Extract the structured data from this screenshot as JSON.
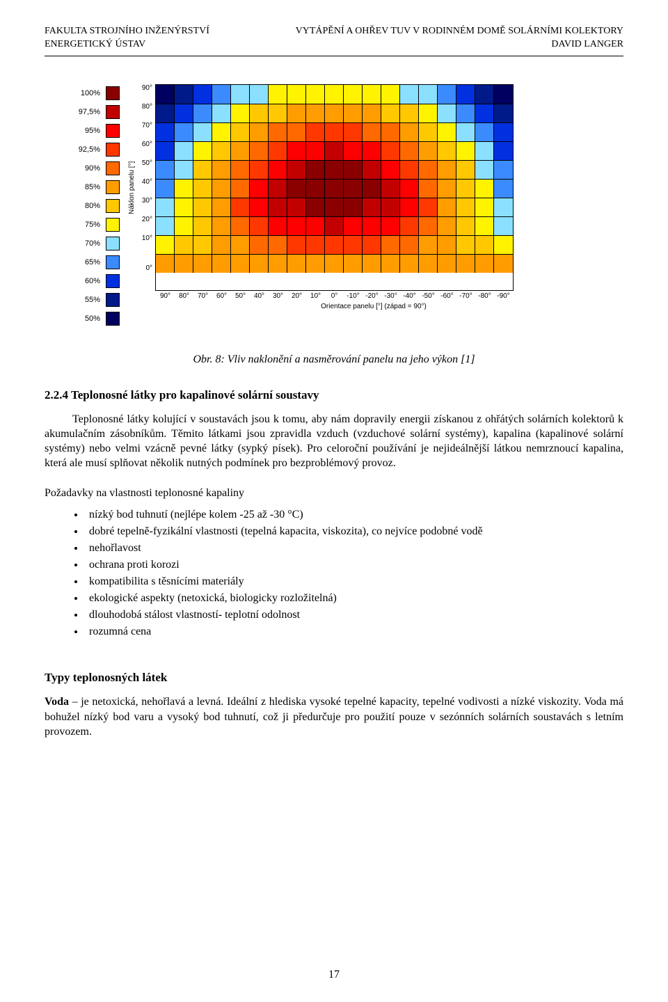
{
  "header": {
    "left1": "FAKULTA STROJNÍHO INŽENÝRSTVÍ",
    "left2": "ENERGETICKÝ ÚSTAV",
    "right1": "VYTÁPĚNÍ A OHŘEV TUV V RODINNÉM DOMĚ SOLÁRNÍMI KOLEKTORY",
    "right2": "DAVID LANGER"
  },
  "figure": {
    "type": "heatmap",
    "caption": "Obr. 8: Vliv naklonění a nasměrování panelu na jeho výkon [1]",
    "x_title": "Orientace panelu [°] (západ = 90°)",
    "y_title": "Náklon panelu [°]",
    "x_ticks": [
      "90°",
      "80°",
      "70°",
      "60°",
      "50°",
      "40°",
      "30°",
      "20°",
      "10°",
      "0°",
      "-10°",
      "-20°",
      "-30°",
      "-40°",
      "-50°",
      "-60°",
      "-70°",
      "-80°",
      "-90°"
    ],
    "y_ticks": [
      "90°",
      "80°",
      "70°",
      "60°",
      "50°",
      "40°",
      "30°",
      "20°",
      "10°",
      "0°"
    ],
    "legend": [
      {
        "label": "100%",
        "color": "#8a0000"
      },
      {
        "label": "97,5%",
        "color": "#c30000"
      },
      {
        "label": "95%",
        "color": "#ff0000"
      },
      {
        "label": "92,5%",
        "color": "#ff3800"
      },
      {
        "label": "90%",
        "color": "#ff6900"
      },
      {
        "label": "85%",
        "color": "#ff9d00"
      },
      {
        "label": "80%",
        "color": "#ffc800"
      },
      {
        "label": "75%",
        "color": "#fff300"
      },
      {
        "label": "70%",
        "color": "#8be0ff"
      },
      {
        "label": "65%",
        "color": "#3b8bff"
      },
      {
        "label": "60%",
        "color": "#0030e0"
      },
      {
        "label": "55%",
        "color": "#001a8a"
      },
      {
        "label": "50%",
        "color": "#000060"
      }
    ],
    "cell_border_color": "#000000",
    "color_scale": {
      "50": "#000060",
      "55": "#001a8a",
      "60": "#0030e0",
      "65": "#3b8bff",
      "70": "#8be0ff",
      "75": "#fff300",
      "80": "#ffc800",
      "85": "#ff9d00",
      "90": "#ff6900",
      "92": "#ff3800",
      "95": "#ff0000",
      "97": "#c30000",
      "100": "#8a0000"
    },
    "grid_values": [
      [
        50,
        55,
        60,
        65,
        70,
        70,
        75,
        75,
        75,
        75,
        75,
        75,
        75,
        70,
        70,
        65,
        60,
        55,
        50
      ],
      [
        55,
        60,
        65,
        70,
        75,
        80,
        80,
        85,
        85,
        85,
        85,
        85,
        80,
        80,
        75,
        70,
        65,
        60,
        55
      ],
      [
        60,
        65,
        70,
        75,
        80,
        85,
        90,
        90,
        92,
        92,
        92,
        90,
        90,
        85,
        80,
        75,
        70,
        65,
        60
      ],
      [
        60,
        70,
        75,
        80,
        85,
        90,
        92,
        95,
        95,
        97,
        95,
        95,
        92,
        90,
        85,
        80,
        75,
        70,
        60
      ],
      [
        65,
        70,
        80,
        85,
        90,
        92,
        95,
        97,
        100,
        100,
        100,
        97,
        95,
        92,
        90,
        85,
        80,
        70,
        65
      ],
      [
        65,
        75,
        80,
        85,
        90,
        95,
        97,
        100,
        100,
        100,
        100,
        100,
        97,
        95,
        90,
        85,
        80,
        75,
        65
      ],
      [
        70,
        75,
        80,
        85,
        92,
        95,
        97,
        97,
        100,
        100,
        100,
        97,
        97,
        95,
        92,
        85,
        80,
        75,
        70
      ],
      [
        70,
        75,
        80,
        85,
        90,
        92,
        95,
        95,
        95,
        97,
        95,
        95,
        95,
        92,
        90,
        85,
        80,
        75,
        70
      ],
      [
        75,
        80,
        80,
        85,
        85,
        90,
        90,
        92,
        92,
        92,
        92,
        92,
        90,
        90,
        85,
        85,
        80,
        80,
        75
      ],
      [
        85,
        85,
        85,
        85,
        85,
        85,
        85,
        85,
        85,
        85,
        85,
        85,
        85,
        85,
        85,
        85,
        85,
        85,
        85
      ]
    ]
  },
  "section": {
    "number_title": "2.2.4 Teplonosné látky pro kapalinové solární soustavy",
    "para": "Teplonosné látky kolující v soustavách jsou k tomu, aby nám dopravily energii získanou z ohřátých solárních kolektorů k akumulačním zásobníkům. Těmito látkami jsou zpravidla vzduch (vzduchové solární systémy), kapalina (kapalinové solární systémy) nebo velmi vzácně pevné látky (sypký písek). Pro celoroční používání je nejideálnější látkou nemrznoucí kapalina, která ale musí splňovat několik nutných podmínek pro bezproblémový provoz."
  },
  "requirements": {
    "title": "Požadavky na vlastnosti teplonosné kapaliny",
    "items": [
      "nízký bod tuhnutí (nejlépe kolem -25 až -30 °C)",
      "dobré tepelně-fyzikální vlastnosti (tepelná kapacita, viskozita), co nejvíce podobné vodě",
      "nehořlavost",
      "ochrana proti korozi",
      "kompatibilita s těsnícími materiály",
      "ekologické aspekty (netoxická, biologicky rozložitelná)",
      "dlouhodobá stálost vlastností- teplotní odolnost",
      "rozumná cena"
    ]
  },
  "types": {
    "heading": "Typy teplonosných látek",
    "voda_label": "Voda",
    "voda_text": " – je netoxická, nehořlavá a levná. Ideální z hlediska vysoké tepelné kapacity, tepelné vodivosti a nízké viskozity. Voda má bohužel nízký bod varu a vysoký bod tuhnutí, což ji předurčuje pro použití pouze v sezónních solárních soustavách s letním provozem."
  },
  "page_number": "17"
}
